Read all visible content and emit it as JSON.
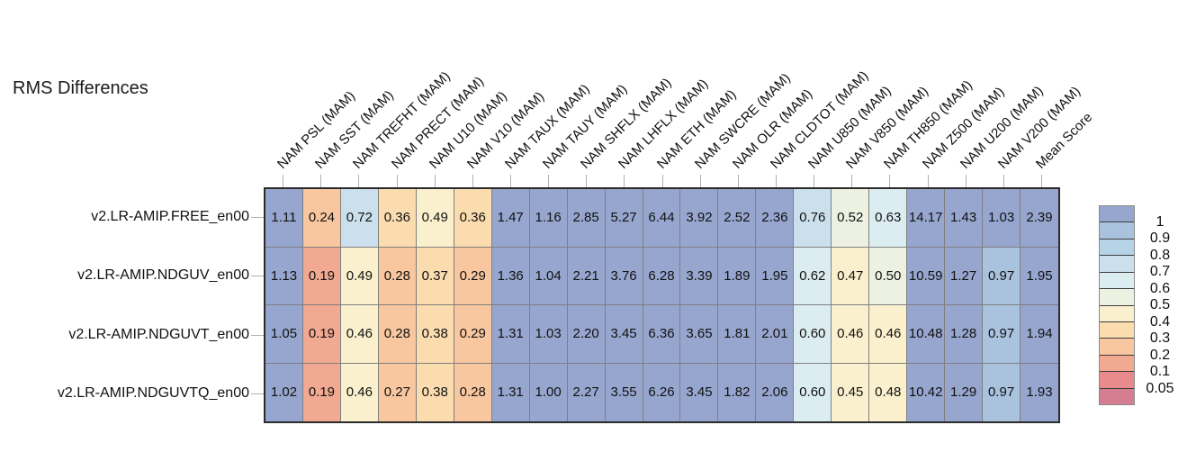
{
  "title": "RMS Differences",
  "chart_data": {
    "type": "heatmap",
    "title": "RMS Differences",
    "columns": [
      "NAM PSL (MAM)",
      "NAM SST (MAM)",
      "NAM TREFHT (MAM)",
      "NAM PRECT (MAM)",
      "NAM U10 (MAM)",
      "NAM V10 (MAM)",
      "NAM TAUX (MAM)",
      "NAM TAUY (MAM)",
      "NAM SHFLX (MAM)",
      "NAM LHFLX (MAM)",
      "NAM ETH (MAM)",
      "NAM SWCRE (MAM)",
      "NAM OLR (MAM)",
      "NAM CLDTOT (MAM)",
      "NAM U850 (MAM)",
      "NAM V850 (MAM)",
      "NAM TH850 (MAM)",
      "NAM Z500 (MAM)",
      "NAM U200 (MAM)",
      "NAM V200 (MAM)",
      "Mean Score"
    ],
    "rows": [
      "v2.LR-AMIP.FREE_en00",
      "v2.LR-AMIP.NDGUV_en00",
      "v2.LR-AMIP.NDGUVT_en00",
      "v2.LR-AMIP.NDGUVTQ_en00"
    ],
    "values": [
      [
        1.11,
        0.24,
        0.72,
        0.36,
        0.49,
        0.36,
        1.47,
        1.16,
        2.85,
        5.27,
        6.44,
        3.92,
        2.52,
        2.36,
        0.76,
        0.52,
        0.63,
        14.17,
        1.43,
        1.03,
        2.39
      ],
      [
        1.13,
        0.19,
        0.49,
        0.28,
        0.37,
        0.29,
        1.36,
        1.04,
        2.21,
        3.76,
        6.28,
        3.39,
        1.89,
        1.95,
        0.62,
        0.47,
        0.5,
        10.59,
        1.27,
        0.97,
        1.95
      ],
      [
        1.05,
        0.19,
        0.46,
        0.28,
        0.38,
        0.29,
        1.31,
        1.03,
        2.2,
        3.45,
        6.36,
        3.65,
        1.81,
        2.01,
        0.6,
        0.46,
        0.46,
        10.48,
        1.28,
        0.97,
        1.94
      ],
      [
        1.02,
        0.19,
        0.46,
        0.27,
        0.38,
        0.28,
        1.31,
        1.0,
        2.27,
        3.55,
        6.26,
        3.45,
        1.82,
        2.06,
        0.6,
        0.45,
        0.48,
        10.42,
        1.29,
        0.97,
        1.93
      ]
    ],
    "legend": {
      "tick_labels": [
        "1",
        "0.9",
        "0.8",
        "0.7",
        "0.6",
        "0.5",
        "0.4",
        "0.3",
        "0.2",
        "0.1",
        "0.05"
      ],
      "thresholds": [
        1,
        0.9,
        0.8,
        0.7,
        0.6,
        0.5,
        0.4,
        0.3,
        0.2,
        0.1,
        0.05
      ],
      "band_colors": [
        "#97a6cf",
        "#a9c2dd",
        "#b7d3e6",
        "#cbe0ec",
        "#dcedf2",
        "#ecf1e2",
        "#fbf0cd",
        "#fadcae",
        "#f8c79f",
        "#f2a992",
        "#e98b8c",
        "#d57e92"
      ]
    }
  }
}
